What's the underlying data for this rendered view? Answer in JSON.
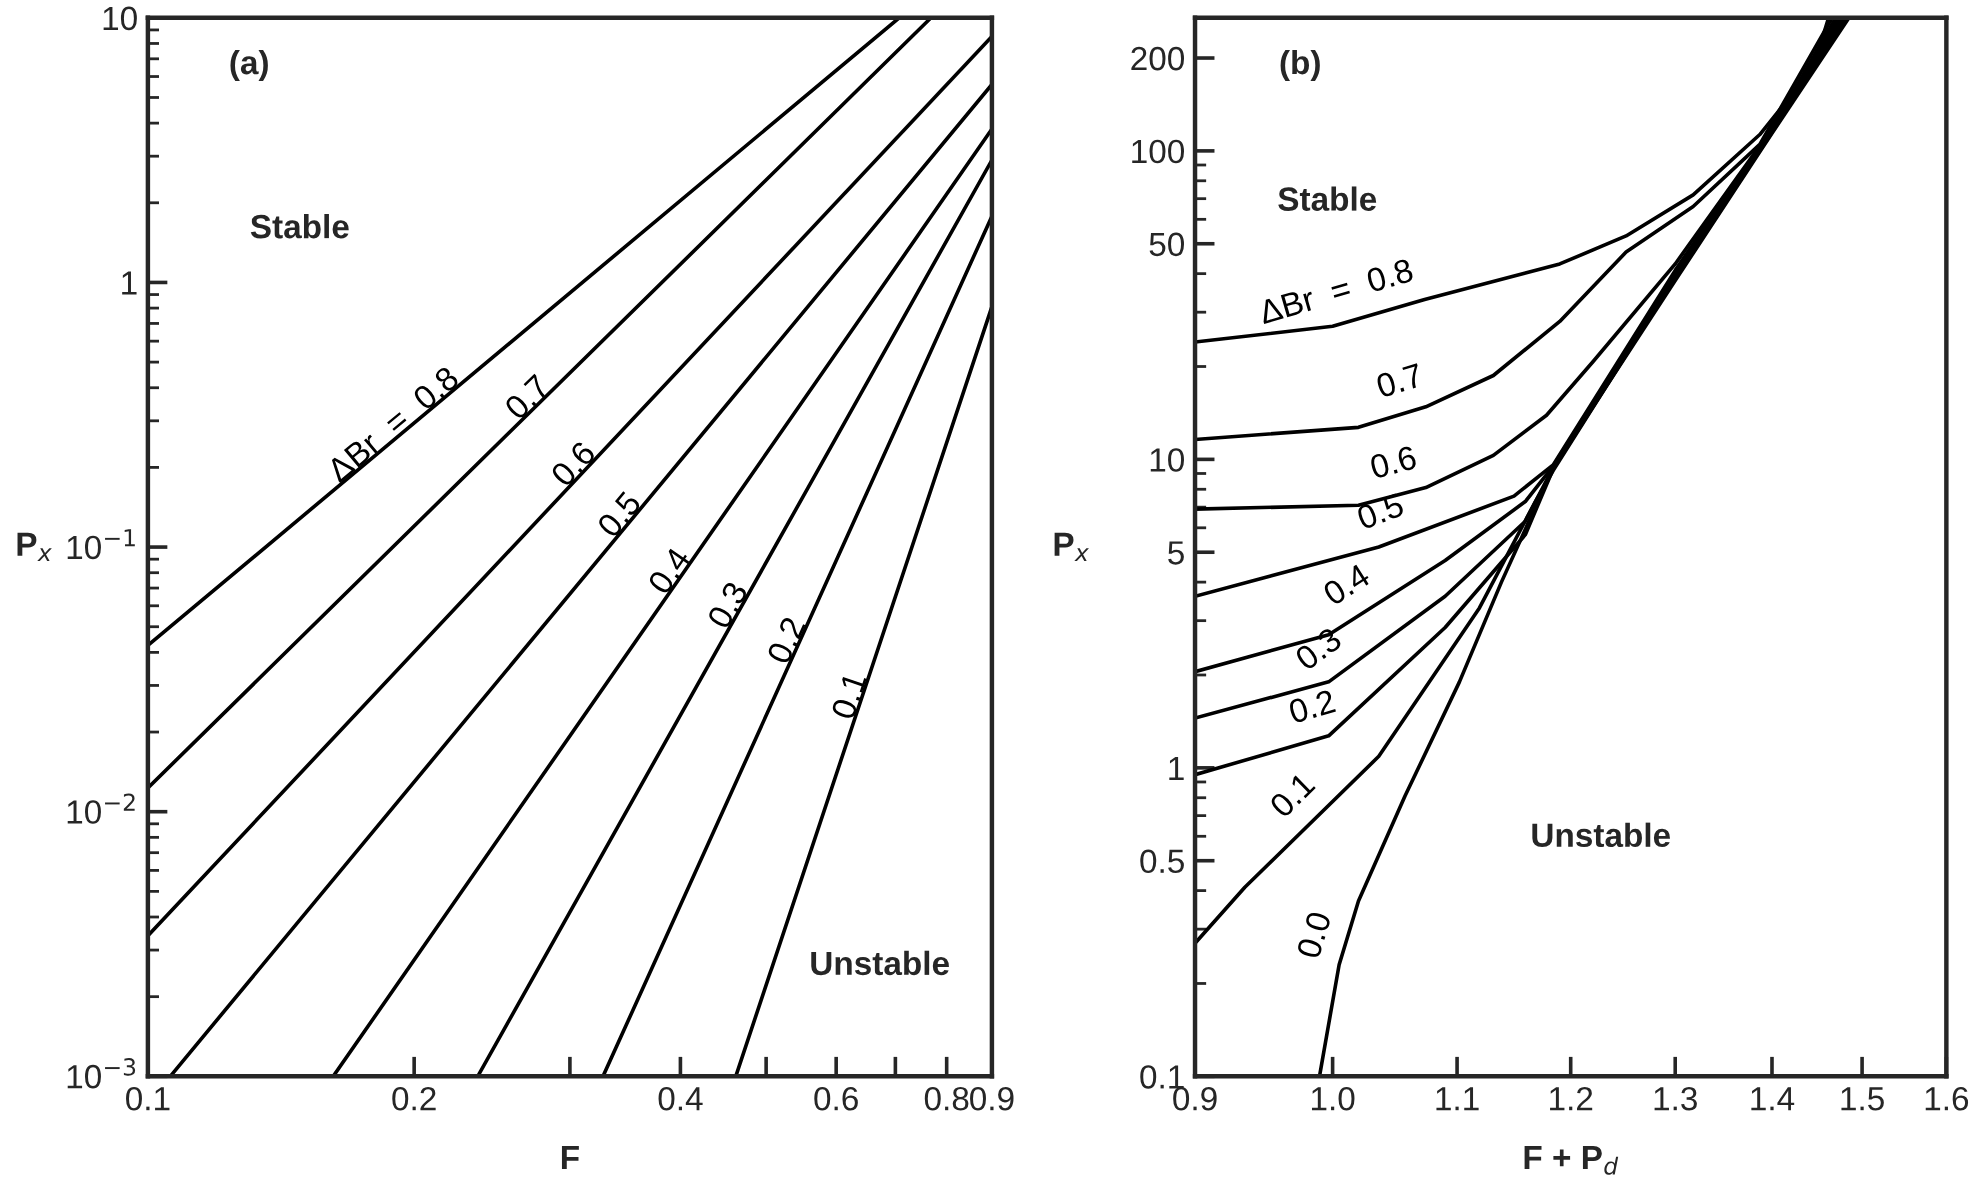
{
  "chart_data": [
    {
      "type": "line",
      "xlabel": "F",
      "ylabel": "P$_{x}$",
      "log": "xy",
      "grid": false,
      "legend": false,
      "line_style": "solid",
      "marker": "none",
      "xlim": [
        0.1,
        0.9
      ],
      "xticks": [
        0.1,
        0.2,
        {
          "value": 0.3,
          "label": null
        },
        0.4,
        {
          "value": 0.5,
          "label": null
        },
        0.6,
        {
          "value": 0.7,
          "label": null
        },
        0.8,
        0.9
      ],
      "ylim": [
        0.001,
        10
      ],
      "yticks": [
        {
          "value": 0.001,
          "label": "10$^{−3}$"
        },
        {
          "value": 0.01,
          "label": "10$^{−2}$"
        },
        {
          "value": 0.1,
          "label": "10$^{−1}$"
        },
        1,
        10
      ],
      "series": [
        {
          "name": "ΔBr  =  0.8",
          "color": "#000000",
          "x": [
            0.1,
            0.707
          ],
          "values": [
            0.0425,
            10
          ]
        },
        {
          "name": "0.7",
          "color": "#000000",
          "x": [
            0.1,
            0.768
          ],
          "values": [
            0.0123,
            10
          ]
        },
        {
          "name": "0.6",
          "color": "#000000",
          "x": [
            0.1,
            0.9
          ],
          "values": [
            0.0034,
            8.5
          ]
        },
        {
          "name": "0.5",
          "color": "#000000",
          "x": [
            0.106,
            0.9
          ],
          "values": [
            0.001,
            5.6
          ]
        },
        {
          "name": "0.4",
          "color": "#000000",
          "x": [
            0.162,
            0.9
          ],
          "values": [
            0.001,
            3.8
          ]
        },
        {
          "name": "0.3",
          "color": "#000000",
          "x": [
            0.236,
            0.9
          ],
          "values": [
            0.001,
            2.9
          ]
        },
        {
          "name": "0.2",
          "color": "#000000",
          "x": [
            0.327,
            0.9
          ],
          "values": [
            0.001,
            1.78
          ]
        },
        {
          "name": "0.1",
          "color": "#000000",
          "x": [
            0.462,
            0.9
          ],
          "values": [
            0.001,
            0.81
          ]
        }
      ],
      "annotations": [
        "(a)",
        "Stable",
        "Unstable"
      ]
    },
    {
      "type": "line",
      "xlabel": "F + P$_{d}$",
      "ylabel": "P$_{x}$",
      "log": "xy",
      "grid": false,
      "legend": false,
      "line_style": "solid",
      "marker": "none",
      "xlim": [
        0.9,
        1.6
      ],
      "xticks": [
        {
          "value": 0.9,
          "label": "0.9"
        },
        {
          "value": 1.0,
          "label": "1.0"
        },
        {
          "value": 1.1,
          "label": "1.1"
        },
        {
          "value": 1.2,
          "label": "1.2"
        },
        {
          "value": 1.3,
          "label": "1.3"
        },
        {
          "value": 1.4,
          "label": "1.4"
        },
        {
          "value": 1.5,
          "label": "1.5"
        },
        {
          "value": 1.6,
          "label": "1.6"
        }
      ],
      "ylim": [
        0.1,
        270
      ],
      "yticks": [
        0.1,
        0.5,
        1,
        5,
        10,
        50,
        100,
        200
      ],
      "series": [
        {
          "name": "ΔBr  =  0.8",
          "color": "#000000",
          "x": [
            0.9,
            1.0,
            1.073,
            1.19,
            1.252,
            1.318,
            1.387,
            1.445,
            1.462
          ],
          "values": [
            24,
            27,
            33,
            43,
            53,
            72,
            113,
            186,
            270
          ]
        },
        {
          "name": "0.7",
          "color": "#000000",
          "x": [
            0.9,
            1.02,
            1.074,
            1.131,
            1.19,
            1.252,
            1.318,
            1.387,
            1.466
          ],
          "values": [
            11.6,
            12.7,
            14.8,
            18.7,
            28,
            47,
            66,
            105,
            270
          ]
        },
        {
          "name": "0.6",
          "color": "#000000",
          "x": [
            0.9,
            1.02,
            1.074,
            1.131,
            1.178,
            1.221,
            1.3,
            1.4,
            1.47
          ],
          "values": [
            6.9,
            7.1,
            8.1,
            10.3,
            13.9,
            20.8,
            43,
            118,
            270
          ]
        },
        {
          "name": "0.5",
          "color": "#000000",
          "x": [
            0.9,
            1.036,
            1.149,
            1.184,
            1.3,
            1.4,
            1.473
          ],
          "values": [
            3.6,
            5.2,
            7.6,
            9.6,
            41,
            118,
            270
          ]
        },
        {
          "name": "0.4",
          "color": "#000000",
          "x": [
            0.9,
            0.997,
            1.09,
            1.159,
            1.184,
            1.3,
            1.4,
            1.476
          ],
          "values": [
            2.05,
            2.7,
            4.7,
            7.3,
            9.5,
            40,
            117,
            270
          ]
        },
        {
          "name": "0.3",
          "color": "#000000",
          "x": [
            0.9,
            0.997,
            1.09,
            1.159,
            1.184,
            1.3,
            1.4,
            1.478
          ],
          "values": [
            1.45,
            1.9,
            3.6,
            6.3,
            9.4,
            40,
            116,
            270
          ]
        },
        {
          "name": "0.2",
          "color": "#000000",
          "x": [
            0.9,
            0.997,
            1.09,
            1.159,
            1.184,
            1.3,
            1.4,
            1.48
          ],
          "values": [
            0.95,
            1.27,
            2.85,
            5.7,
            9.3,
            39,
            116,
            270
          ]
        },
        {
          "name": "0.1",
          "color": "#000000",
          "x": [
            0.9,
            0.935,
            1.036,
            1.119,
            1.168,
            1.184,
            1.3,
            1.4,
            1.482
          ],
          "values": [
            0.27,
            0.41,
            1.09,
            3.3,
            7.3,
            9.2,
            39,
            115,
            270
          ]
        },
        {
          "name": "0.0",
          "color": "#000000",
          "x": [
            0.99,
            1.005,
            1.02,
            1.057,
            1.102,
            1.138,
            1.184,
            1.3,
            1.4,
            1.485
          ],
          "values": [
            0.1,
            0.23,
            0.37,
            0.81,
            1.9,
            4.0,
            9.4,
            38,
            114,
            270
          ]
        }
      ],
      "annotations": [
        "(b)",
        "Stable",
        "Unstable"
      ]
    }
  ]
}
